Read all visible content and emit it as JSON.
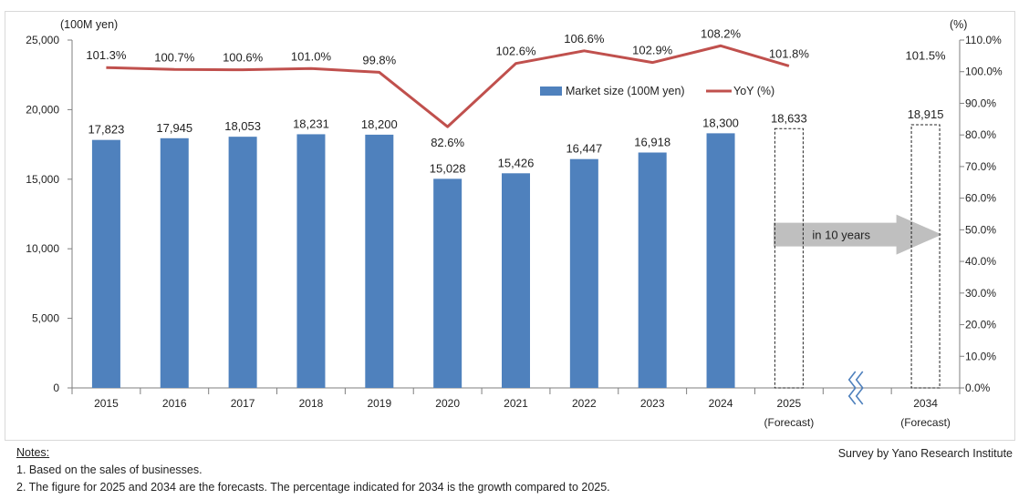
{
  "chart_data": {
    "type": "bar",
    "categories": [
      "2015",
      "2016",
      "2017",
      "2018",
      "2019",
      "2020",
      "2021",
      "2022",
      "2023",
      "2024",
      "2025",
      "",
      "2034"
    ],
    "category_sublabels": [
      "",
      "",
      "",
      "",
      "",
      "",
      "",
      "",
      "",
      "",
      "(Forecast)",
      "",
      "(Forecast)"
    ],
    "series": [
      {
        "name": "Market size (100M yen)",
        "type": "bar",
        "axis": "left",
        "color": "#4f81bd",
        "values": [
          17823,
          17945,
          18053,
          18231,
          18200,
          15028,
          15426,
          16447,
          16918,
          18300,
          18633,
          null,
          18915
        ],
        "value_labels": [
          "17,823",
          "17,945",
          "18,053",
          "18,231",
          "18,200",
          "15,028",
          "15,426",
          "16,447",
          "16,918",
          "18,300",
          "18,633",
          "",
          "18,915"
        ],
        "forecast": [
          false,
          false,
          false,
          false,
          false,
          false,
          false,
          false,
          false,
          false,
          true,
          false,
          true
        ]
      },
      {
        "name": "YoY (%)",
        "type": "line",
        "axis": "right",
        "color": "#c0504d",
        "values": [
          101.3,
          100.7,
          100.6,
          101.0,
          99.8,
          82.6,
          102.6,
          106.6,
          102.9,
          108.2,
          101.8,
          null,
          101.5
        ],
        "value_labels": [
          "101.3%",
          "100.7%",
          "100.6%",
          "101.0%",
          "99.8%",
          "82.6%",
          "102.6%",
          "106.6%",
          "102.9%",
          "108.2%",
          "101.8%",
          "",
          "101.5%"
        ]
      }
    ],
    "y_left": {
      "unit_label": "(100M yen)",
      "lim": [
        0,
        25000
      ],
      "ticks": [
        0,
        5000,
        10000,
        15000,
        20000,
        25000
      ],
      "tick_labels": [
        "0",
        "5,000",
        "10,000",
        "15,000",
        "20,000",
        "25,000"
      ]
    },
    "y_right": {
      "unit_label": "(%)",
      "lim": [
        0,
        110
      ],
      "ticks": [
        0,
        10,
        20,
        30,
        40,
        50,
        60,
        70,
        80,
        90,
        100,
        110
      ],
      "tick_labels": [
        "0.0%",
        "10.0%",
        "20.0%",
        "30.0%",
        "40.0%",
        "50.0%",
        "60.0%",
        "70.0%",
        "80.0%",
        "90.0%",
        "100.0%",
        "110.0%"
      ]
    },
    "grid": false,
    "legend": {
      "placement": "top-center"
    },
    "axis_break_after": "2025",
    "annotation": {
      "text": "in 10 years",
      "color": "#bfbfbf"
    }
  },
  "footer": {
    "notes_heading": "Notes:",
    "notes": [
      "1.  Based on the sales of businesses.",
      "2.  The figure for 2025 and 2034 are the forecasts. The percentage indicated for 2034 is the growth compared to 2025."
    ],
    "source": "Survey by Yano Research Institute"
  }
}
